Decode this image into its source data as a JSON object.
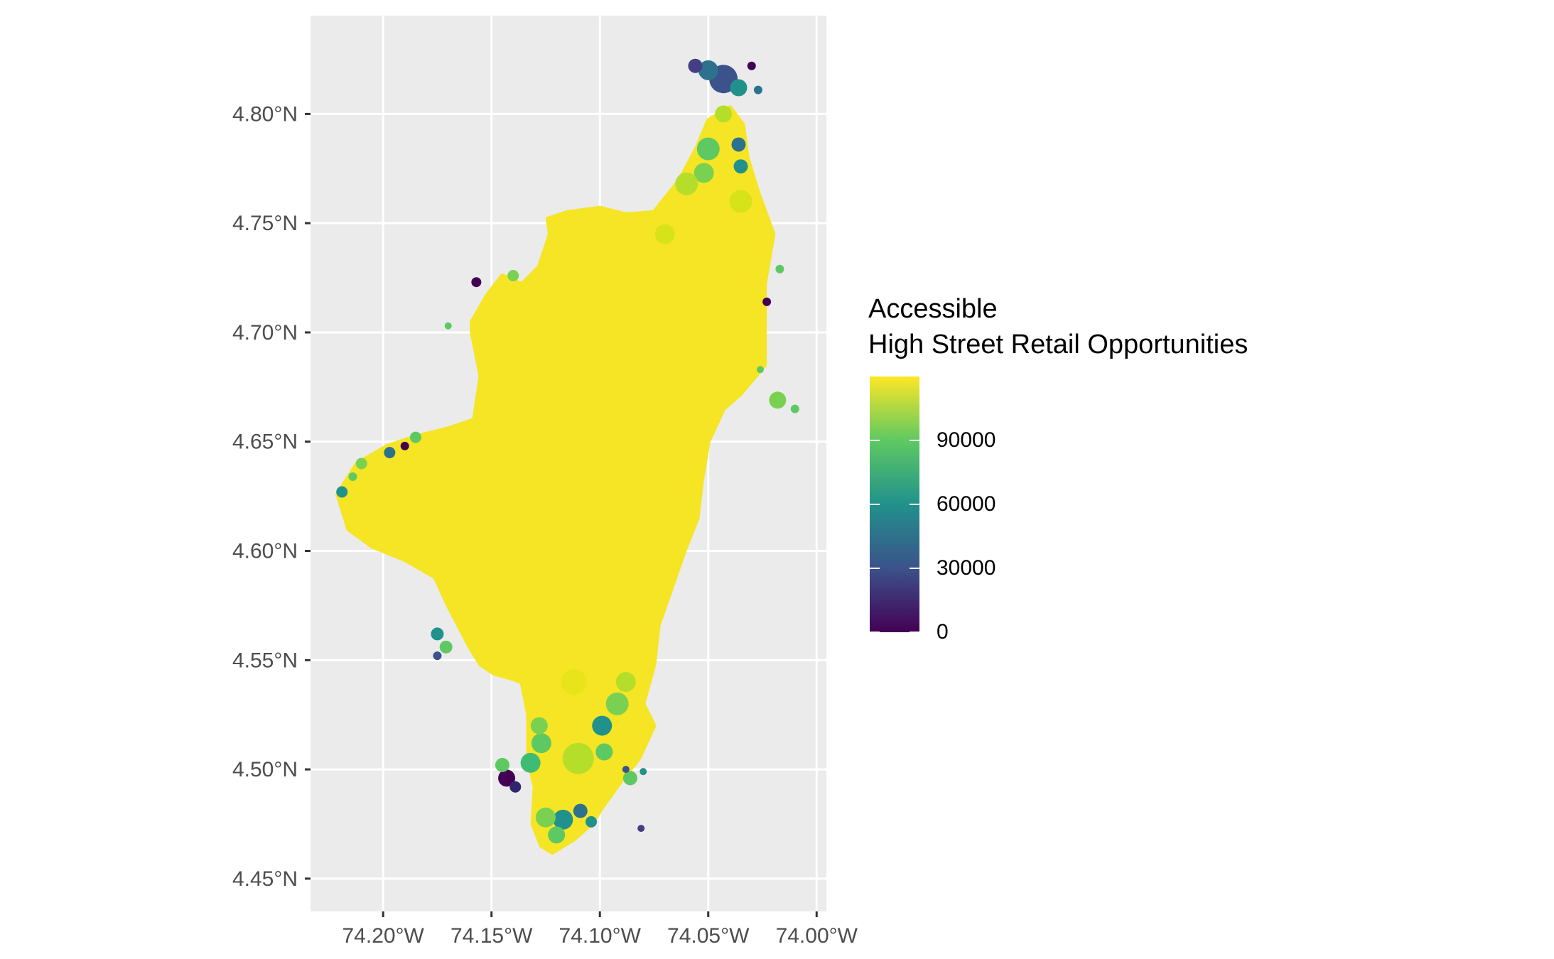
{
  "map": {
    "axes": {
      "x_ticks": [
        {
          "lon": -74.2,
          "label": "74.20°W"
        },
        {
          "lon": -74.15,
          "label": "74.15°W"
        },
        {
          "lon": -74.1,
          "label": "74.10°W"
        },
        {
          "lon": -74.05,
          "label": "74.05°W"
        },
        {
          "lon": -74.0,
          "label": "74.00°W"
        }
      ],
      "y_ticks": [
        {
          "lat": 4.45,
          "label": "4.45°N"
        },
        {
          "lat": 4.5,
          "label": "4.50°N"
        },
        {
          "lat": 4.55,
          "label": "4.55°N"
        },
        {
          "lat": 4.6,
          "label": "4.60°N"
        },
        {
          "lat": 4.65,
          "label": "4.65°N"
        },
        {
          "lat": 4.7,
          "label": "4.70°N"
        },
        {
          "lat": 4.75,
          "label": "4.75°N"
        },
        {
          "lat": 4.8,
          "label": "4.80°N"
        }
      ],
      "lon_range": [
        -74.2335,
        -73.9955
      ],
      "lat_range": [
        4.435,
        4.845
      ]
    },
    "colors": {
      "panel": "#ebebeb",
      "grid": "#ffffff",
      "viridis": [
        "#440154",
        "#3b528b",
        "#21918c",
        "#5ec962",
        "#fde725"
      ],
      "fill_main": "#f5e524"
    },
    "region_outline": [
      [
        -74.221,
        4.626
      ],
      [
        -74.212,
        4.64
      ],
      [
        -74.198,
        4.648
      ],
      [
        -74.186,
        4.652
      ],
      [
        -74.17,
        4.656
      ],
      [
        -74.158,
        4.66
      ],
      [
        -74.155,
        4.68
      ],
      [
        -74.159,
        4.7
      ],
      [
        -74.159,
        4.705
      ],
      [
        -74.152,
        4.717
      ],
      [
        -74.145,
        4.726
      ],
      [
        -74.136,
        4.722
      ],
      [
        -74.128,
        4.73
      ],
      [
        -74.123,
        4.745
      ],
      [
        -74.124,
        4.752
      ],
      [
        -74.115,
        4.755
      ],
      [
        -74.1,
        4.757
      ],
      [
        -74.088,
        4.754
      ],
      [
        -74.075,
        4.755
      ],
      [
        -74.063,
        4.77
      ],
      [
        -74.055,
        4.785
      ],
      [
        -74.05,
        4.797
      ],
      [
        -74.04,
        4.803
      ],
      [
        -74.034,
        4.795
      ],
      [
        -74.032,
        4.78
      ],
      [
        -74.027,
        4.764
      ],
      [
        -74.02,
        4.745
      ],
      [
        -74.024,
        4.722
      ],
      [
        -74.024,
        4.7
      ],
      [
        -74.024,
        4.685
      ],
      [
        -74.035,
        4.672
      ],
      [
        -74.043,
        4.665
      ],
      [
        -74.05,
        4.65
      ],
      [
        -74.053,
        4.632
      ],
      [
        -74.055,
        4.615
      ],
      [
        -74.061,
        4.6
      ],
      [
        -74.068,
        4.58
      ],
      [
        -74.073,
        4.566
      ],
      [
        -74.075,
        4.548
      ],
      [
        -74.08,
        4.53
      ],
      [
        -74.075,
        4.52
      ],
      [
        -74.082,
        4.505
      ],
      [
        -74.09,
        4.495
      ],
      [
        -74.098,
        4.484
      ],
      [
        -74.104,
        4.475
      ],
      [
        -74.112,
        4.468
      ],
      [
        -74.122,
        4.462
      ],
      [
        -74.127,
        4.465
      ],
      [
        -74.131,
        4.475
      ],
      [
        -74.13,
        4.492
      ],
      [
        -74.133,
        4.505
      ],
      [
        -74.133,
        4.525
      ],
      [
        -74.136,
        4.54
      ],
      [
        -74.142,
        4.542
      ],
      [
        -74.149,
        4.544
      ],
      [
        -74.155,
        4.548
      ],
      [
        -74.16,
        4.556
      ],
      [
        -74.17,
        4.575
      ],
      [
        -74.176,
        4.588
      ],
      [
        -74.19,
        4.596
      ],
      [
        -74.205,
        4.602
      ],
      [
        -74.216,
        4.61
      ]
    ],
    "patches": [
      {
        "lon": -74.043,
        "lat": 4.816,
        "color": "#3b528b",
        "r": 20
      },
      {
        "lon": -74.05,
        "lat": 4.82,
        "color": "#2c728e",
        "r": 14
      },
      {
        "lon": -74.036,
        "lat": 4.812,
        "color": "#21918c",
        "r": 12
      },
      {
        "lon": -74.056,
        "lat": 4.822,
        "color": "#433e85",
        "r": 10
      },
      {
        "lon": -74.03,
        "lat": 4.822,
        "color": "#440154",
        "r": 6
      },
      {
        "lon": -74.027,
        "lat": 4.811,
        "color": "#2c728e",
        "r": 6
      },
      {
        "lon": -74.05,
        "lat": 4.784,
        "color": "#5ec962",
        "r": 16
      },
      {
        "lon": -74.052,
        "lat": 4.773,
        "color": "#7ad151",
        "r": 14
      },
      {
        "lon": -74.036,
        "lat": 4.786,
        "color": "#2c728e",
        "r": 10
      },
      {
        "lon": -74.035,
        "lat": 4.776,
        "color": "#21918c",
        "r": 10
      },
      {
        "lon": -74.043,
        "lat": 4.8,
        "color": "#b5de2b",
        "r": 12
      },
      {
        "lon": -74.023,
        "lat": 4.714,
        "color": "#440154",
        "r": 6
      },
      {
        "lon": -74.017,
        "lat": 4.729,
        "color": "#5ec962",
        "r": 6
      },
      {
        "lon": -74.026,
        "lat": 4.683,
        "color": "#5ec962",
        "r": 5
      },
      {
        "lon": -74.018,
        "lat": 4.669,
        "color": "#7ad151",
        "r": 12
      },
      {
        "lon": -74.01,
        "lat": 4.665,
        "color": "#5ec962",
        "r": 6
      },
      {
        "lon": -74.157,
        "lat": 4.723,
        "color": "#440154",
        "r": 7
      },
      {
        "lon": -74.14,
        "lat": 4.726,
        "color": "#7ad151",
        "r": 8
      },
      {
        "lon": -74.17,
        "lat": 4.703,
        "color": "#5ec962",
        "r": 5
      },
      {
        "lon": -74.197,
        "lat": 4.645,
        "color": "#2c728e",
        "r": 8
      },
      {
        "lon": -74.19,
        "lat": 4.648,
        "color": "#440154",
        "r": 6
      },
      {
        "lon": -74.185,
        "lat": 4.652,
        "color": "#5ec962",
        "r": 8
      },
      {
        "lon": -74.21,
        "lat": 4.64,
        "color": "#7ad151",
        "r": 8
      },
      {
        "lon": -74.219,
        "lat": 4.627,
        "color": "#21918c",
        "r": 8
      },
      {
        "lon": -74.214,
        "lat": 4.634,
        "color": "#5ec962",
        "r": 6
      },
      {
        "lon": -74.175,
        "lat": 4.562,
        "color": "#21918c",
        "r": 9
      },
      {
        "lon": -74.175,
        "lat": 4.552,
        "color": "#3b528b",
        "r": 6
      },
      {
        "lon": -74.171,
        "lat": 4.556,
        "color": "#5ec962",
        "r": 9
      },
      {
        "lon": -74.143,
        "lat": 4.496,
        "color": "#440154",
        "r": 12
      },
      {
        "lon": -74.139,
        "lat": 4.492,
        "color": "#31266e",
        "r": 8
      },
      {
        "lon": -74.132,
        "lat": 4.503,
        "color": "#3fbc73",
        "r": 14
      },
      {
        "lon": -74.145,
        "lat": 4.502,
        "color": "#5ec962",
        "r": 10
      },
      {
        "lon": -74.127,
        "lat": 4.512,
        "color": "#5ec962",
        "r": 14
      },
      {
        "lon": -74.128,
        "lat": 4.52,
        "color": "#7ad151",
        "r": 12
      },
      {
        "lon": -74.117,
        "lat": 4.477,
        "color": "#21918c",
        "r": 14
      },
      {
        "lon": -74.109,
        "lat": 4.481,
        "color": "#2c728e",
        "r": 10
      },
      {
        "lon": -74.12,
        "lat": 4.47,
        "color": "#5ec962",
        "r": 12
      },
      {
        "lon": -74.125,
        "lat": 4.478,
        "color": "#7ad151",
        "r": 14
      },
      {
        "lon": -74.104,
        "lat": 4.476,
        "color": "#21918c",
        "r": 8
      },
      {
        "lon": -74.099,
        "lat": 4.52,
        "color": "#21918c",
        "r": 14
      },
      {
        "lon": -74.092,
        "lat": 4.53,
        "color": "#7ad151",
        "r": 16
      },
      {
        "lon": -74.098,
        "lat": 4.508,
        "color": "#5ec962",
        "r": 12
      },
      {
        "lon": -74.086,
        "lat": 4.496,
        "color": "#5ec962",
        "r": 10
      },
      {
        "lon": -74.088,
        "lat": 4.5,
        "color": "#3b528b",
        "r": 5
      },
      {
        "lon": -74.08,
        "lat": 4.499,
        "color": "#21918c",
        "r": 5
      },
      {
        "lon": -74.081,
        "lat": 4.473,
        "color": "#433e85",
        "r": 5
      },
      {
        "lon": -74.11,
        "lat": 4.505,
        "color": "#b5de2b",
        "r": 22
      },
      {
        "lon": -74.088,
        "lat": 4.54,
        "color": "#b5de2b",
        "r": 14
      },
      {
        "lon": -74.06,
        "lat": 4.768,
        "color": "#b5de2b",
        "r": 16
      },
      {
        "lon": -74.035,
        "lat": 4.76,
        "color": "#d8e219",
        "r": 16
      },
      {
        "lon": -74.07,
        "lat": 4.745,
        "color": "#d8e219",
        "r": 14
      },
      {
        "lon": -74.112,
        "lat": 4.54,
        "color": "#e8e419",
        "r": 18
      }
    ]
  },
  "legend": {
    "title_line1": "Accessible",
    "title_line2": "High Street Retail Opportunities",
    "range": [
      0,
      120000
    ],
    "ticks": [
      {
        "value": 0,
        "label": "0"
      },
      {
        "value": 30000,
        "label": "30000"
      },
      {
        "value": 60000,
        "label": "60000"
      },
      {
        "value": 90000,
        "label": "90000"
      }
    ]
  }
}
